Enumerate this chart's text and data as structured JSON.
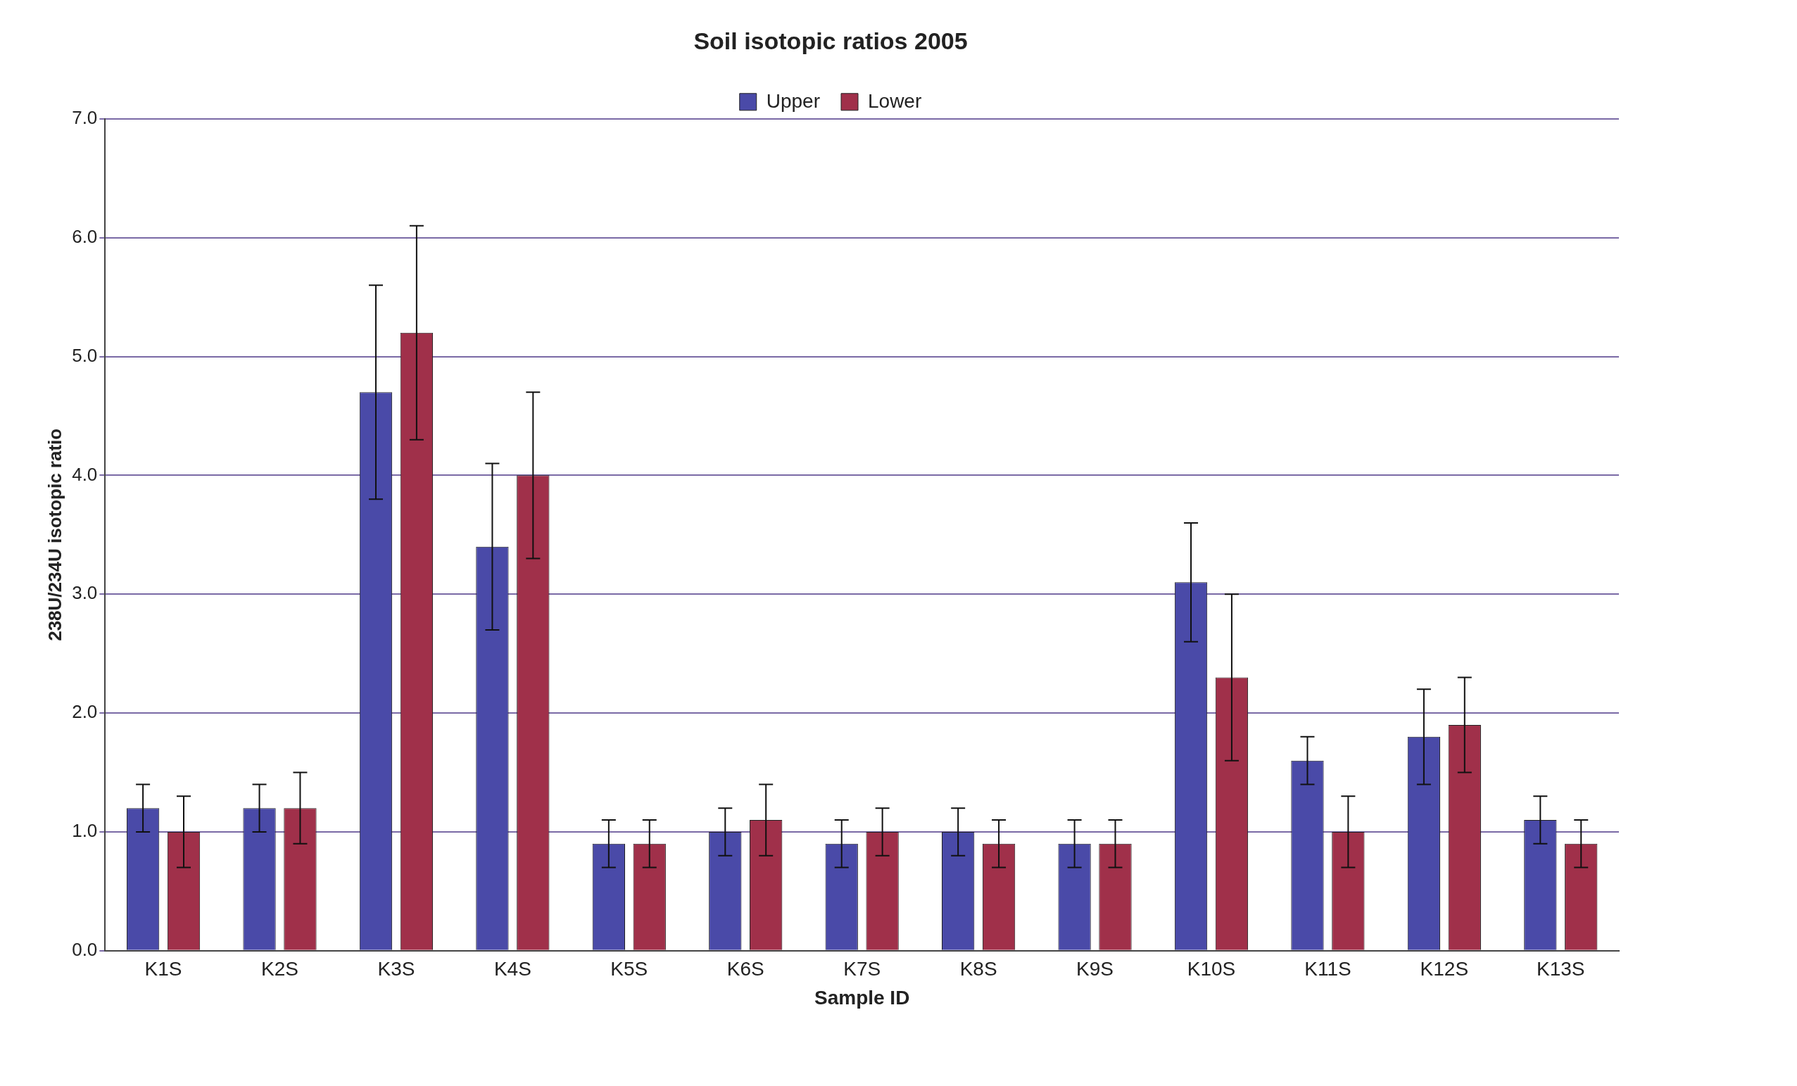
{
  "chart_data": {
    "type": "bar",
    "title": "Soil isotopic ratios 2005",
    "xlabel": "Sample ID",
    "ylabel": "238U/234U isotopic ratio",
    "categories": [
      "K1S",
      "K2S",
      "K3S",
      "K4S",
      "K5S",
      "K6S",
      "K7S",
      "K8S",
      "K9S",
      "K10S",
      "K11S",
      "K12S",
      "K13S"
    ],
    "series": [
      {
        "name": "Upper",
        "color": "#4a4aa8",
        "values": [
          1.2,
          1.2,
          4.7,
          3.4,
          0.9,
          1.0,
          0.9,
          1.0,
          0.9,
          3.1,
          1.6,
          1.8,
          1.1
        ],
        "errors": [
          0.2,
          0.2,
          0.9,
          0.7,
          0.2,
          0.2,
          0.2,
          0.2,
          0.2,
          0.5,
          0.2,
          0.4,
          0.2
        ]
      },
      {
        "name": "Lower",
        "color": "#a0304a",
        "values": [
          1.0,
          1.2,
          5.2,
          4.0,
          0.9,
          1.1,
          1.0,
          0.9,
          0.9,
          2.3,
          1.0,
          1.9,
          0.9
        ],
        "errors": [
          0.3,
          0.3,
          0.9,
          0.7,
          0.2,
          0.3,
          0.2,
          0.2,
          0.2,
          0.7,
          0.3,
          0.4,
          0.2
        ]
      }
    ],
    "ylim": [
      0,
      7
    ],
    "yticks": [
      {
        "value": 0,
        "label": "0.0"
      },
      {
        "value": 1,
        "label": "1.0"
      },
      {
        "value": 2,
        "label": "2.0"
      },
      {
        "value": 3,
        "label": "3.0"
      },
      {
        "value": 4,
        "label": "4.0"
      },
      {
        "value": 5,
        "label": "5.0"
      },
      {
        "value": 6,
        "label": "6.0"
      },
      {
        "value": 7,
        "label": "7.0"
      }
    ],
    "grid": "y",
    "legend": "top"
  }
}
